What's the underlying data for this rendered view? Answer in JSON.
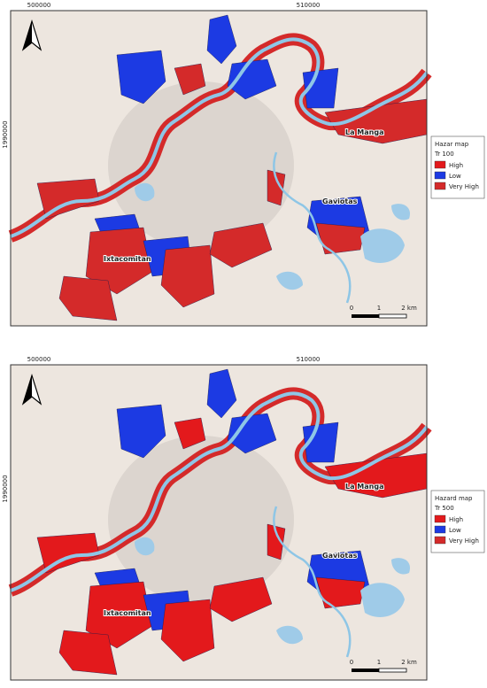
{
  "panels": [
    {
      "coords": {
        "x": [
          "500000",
          "510000"
        ],
        "y": [
          "1990000"
        ]
      },
      "places": [
        "La Manga",
        "Gaviotas",
        "Ixtacomitan"
      ],
      "scale": [
        "0",
        "1",
        "2 km"
      ],
      "legend": {
        "title": "Hazar map",
        "subtitle": "Tr 100",
        "items": [
          {
            "label": "High",
            "color": "#e3191c"
          },
          {
            "label": "Low",
            "color": "#1c3ae3"
          },
          {
            "label": "Very High",
            "color": "#d42a2a"
          }
        ]
      }
    },
    {
      "coords": {
        "x": [
          "500000",
          "510000"
        ],
        "y": [
          "1990000"
        ]
      },
      "places": [
        "La Manga",
        "Gaviotas",
        "Ixtacomitan"
      ],
      "scale": [
        "0",
        "1",
        "2 km"
      ],
      "legend": {
        "title": "Hazard map",
        "subtitle": "Tr 500",
        "items": [
          {
            "label": "High",
            "color": "#e3191c"
          },
          {
            "label": "Low",
            "color": "#1c3ae3"
          },
          {
            "label": "Very High",
            "color": "#d42a2a"
          }
        ]
      }
    }
  ]
}
